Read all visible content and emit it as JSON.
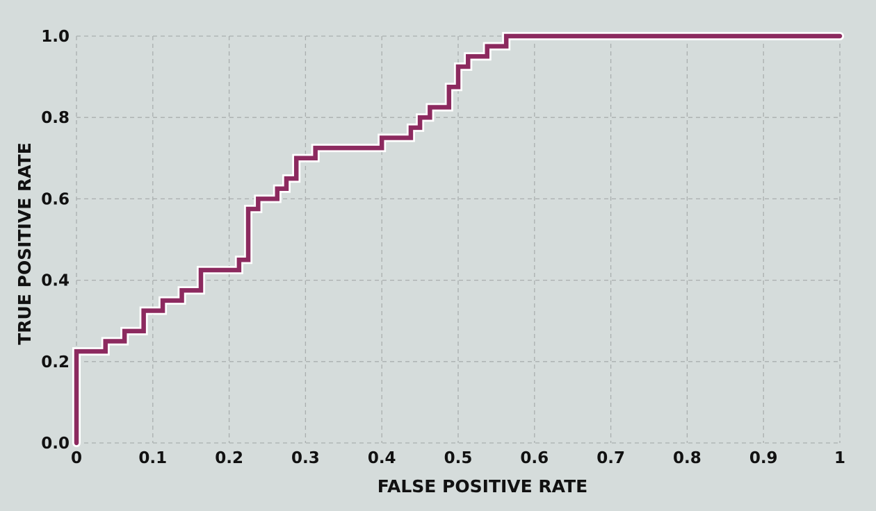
{
  "chart_data": {
    "type": "line",
    "title": "",
    "xlabel": "FALSE POSITIVE RATE",
    "ylabel": "TRUE POSITIVE RATE",
    "xlim": [
      0,
      1
    ],
    "ylim": [
      0,
      1
    ],
    "grid": true,
    "x_ticks": [
      0,
      0.1,
      0.2,
      0.3,
      0.4,
      0.5,
      0.6,
      0.7,
      0.8,
      0.9,
      1
    ],
    "x_tick_labels": [
      "0",
      "0.1",
      "0.2",
      "0.3",
      "0.4",
      "0.5",
      "0.6",
      "0.7",
      "0.8",
      "0.9",
      "1"
    ],
    "y_ticks": [
      0,
      0.2,
      0.4,
      0.6,
      0.8,
      1.0
    ],
    "y_tick_labels": [
      "0.0",
      "0.2",
      "0.4",
      "0.6",
      "0.8",
      "1.0"
    ],
    "colors": {
      "line": "#8c2a5f",
      "halo": "#ffffff",
      "grid": "#a9aeae",
      "background": "#d5dcdb"
    },
    "series": [
      {
        "step": "post",
        "x": [
          0,
          0,
          0.038,
          0.063,
          0.088,
          0.113,
          0.138,
          0.163,
          0.213,
          0.225,
          0.238,
          0.263,
          0.275,
          0.288,
          0.313,
          0.4,
          0.438,
          0.45,
          0.463,
          0.488,
          0.5,
          0.513,
          0.538,
          0.563,
          1
        ],
        "y": [
          0,
          0.225,
          0.25,
          0.275,
          0.325,
          0.35,
          0.375,
          0.425,
          0.45,
          0.575,
          0.6,
          0.625,
          0.65,
          0.7,
          0.725,
          0.75,
          0.775,
          0.8,
          0.825,
          0.875,
          0.925,
          0.95,
          0.975,
          1.0,
          1.0
        ]
      }
    ]
  }
}
